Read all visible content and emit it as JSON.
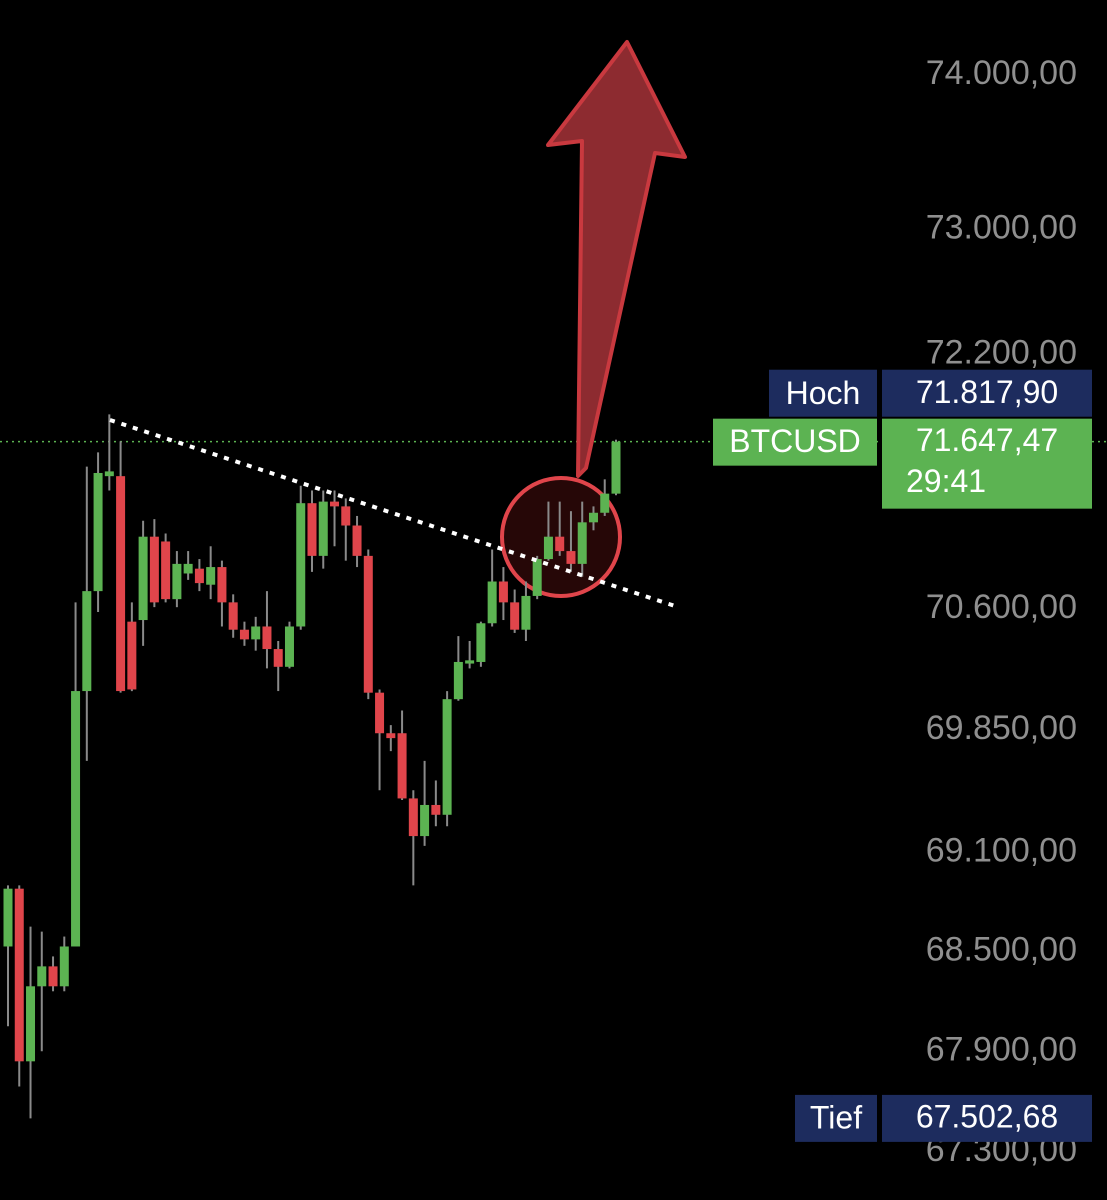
{
  "chart_data": {
    "type": "candlestick",
    "symbol": "BTCUSD",
    "yscale": "log",
    "ylim": [
      67016,
      74491
    ],
    "yticks": [
      {
        "value": 74000,
        "label": "74.000,00"
      },
      {
        "value": 73000,
        "label": "73.000,00"
      },
      {
        "value": 72200,
        "label": "72.200,00"
      },
      {
        "value": 70600,
        "label": "70.600,00"
      },
      {
        "value": 69850,
        "label": "69.850,00"
      },
      {
        "value": 69100,
        "label": "69.100,00"
      },
      {
        "value": 68500,
        "label": "68.500,00"
      },
      {
        "value": 67900,
        "label": "67.900,00"
      },
      {
        "value": 67300,
        "label": "67.300,00"
      }
    ],
    "up_color": "#5cb352",
    "down_color": "#e0454b",
    "open": [
      68530,
      68880,
      67840,
      68290,
      68410,
      68290,
      68530,
      70090,
      70710,
      71430,
      71430,
      70520,
      70530,
      71050,
      71020,
      70660,
      70820,
      70850,
      70750,
      70860,
      70640,
      70470,
      70410,
      70490,
      70350,
      70240,
      70490,
      71260,
      70930,
      71270,
      71240,
      71120,
      70930,
      70080,
      69830,
      69830,
      69430,
      69200,
      69390,
      69330,
      70040,
      70260,
      70270,
      70510,
      70770,
      70640,
      70470,
      70680,
      70910,
      71050,
      70960,
      70880,
      71140,
      71200,
      71320
    ],
    "high": [
      68900,
      68900,
      68650,
      68620,
      68470,
      68590,
      70640,
      71490,
      71580,
      71820,
      71650,
      70640,
      71150,
      71160,
      71070,
      70960,
      70960,
      70910,
      70990,
      70900,
      70690,
      70520,
      70550,
      70710,
      70400,
      70520,
      71370,
      71340,
      71340,
      71340,
      71290,
      71180,
      70970,
      70100,
      69880,
      69970,
      69480,
      69660,
      69540,
      70090,
      70430,
      70400,
      70520,
      70970,
      70860,
      70720,
      70770,
      70930,
      71270,
      71270,
      71210,
      71270,
      71240,
      71410,
      71660
    ],
    "low": [
      68050,
      67690,
      67500,
      67900,
      68260,
      68260,
      68530,
      69660,
      70580,
      71340,
      70080,
      70090,
      70370,
      70610,
      70640,
      70610,
      70780,
      70710,
      70660,
      70490,
      70420,
      70370,
      70340,
      70230,
      70090,
      70230,
      70470,
      70830,
      70850,
      70990,
      70900,
      70860,
      70040,
      69480,
      69720,
      69420,
      68900,
      69140,
      69260,
      69260,
      70030,
      70230,
      70240,
      70490,
      70530,
      70450,
      70400,
      70660,
      70900,
      70930,
      70830,
      70800,
      71090,
      71180,
      71310
    ],
    "close": [
      68880,
      67840,
      68290,
      68410,
      68290,
      68530,
      70090,
      70710,
      71450,
      71460,
      70090,
      70100,
      71050,
      70640,
      70660,
      70880,
      70880,
      70760,
      70860,
      70640,
      70470,
      70410,
      70490,
      70350,
      70240,
      70490,
      71260,
      70930,
      71270,
      71240,
      71120,
      70930,
      70080,
      69830,
      69800,
      69430,
      69200,
      69390,
      69330,
      70040,
      70270,
      70280,
      70510,
      70770,
      70640,
      70470,
      70680,
      70910,
      71050,
      70960,
      70880,
      71140,
      71200,
      71320,
      71647.47
    ],
    "high_marker": {
      "label": "Hoch",
      "value": 71817.9,
      "value_label": "71.817,90"
    },
    "last_marker": {
      "value": 71647.47,
      "value_label": "71.647,47",
      "countdown": "29:41"
    },
    "low_marker": {
      "label": "Tief",
      "value": 67502.68,
      "value_label": "67.502,68"
    }
  }
}
